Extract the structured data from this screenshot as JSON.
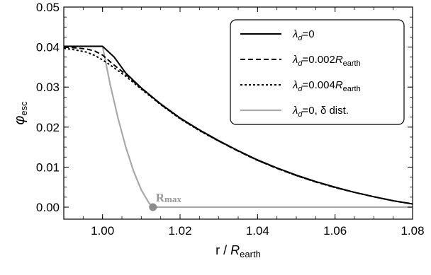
{
  "chart_data": {
    "type": "line",
    "title": "",
    "xlabel": {
      "main": "r / ",
      "italic": "R",
      "sub": "earth"
    },
    "ylabel": {
      "main": "φ",
      "sub": "esc"
    },
    "xlim": [
      0.99,
      1.08
    ],
    "ylim": [
      -0.003,
      0.05
    ],
    "xticks": [
      1.0,
      1.02,
      1.04,
      1.06,
      1.08
    ],
    "xtick_labels": [
      "1.00",
      "1.02",
      "1.04",
      "1.06",
      "1.08"
    ],
    "yticks": [
      0.0,
      0.01,
      0.02,
      0.03,
      0.04,
      0.05
    ],
    "ytick_labels": [
      "0.00",
      "0.01",
      "0.02",
      "0.03",
      "0.04",
      "0.05"
    ],
    "grid": false,
    "legend_position": "top-right",
    "series": [
      {
        "legend": {
          "prefix": "λ",
          "sub": "d",
          "rest": "=0",
          "tail": "",
          "tail_sub": ""
        },
        "color": "#000000",
        "dash": "",
        "x": [
          0.99,
          1.0,
          1.003,
          1.006,
          1.01,
          1.015,
          1.02,
          1.025,
          1.03,
          1.035,
          1.04,
          1.045,
          1.05,
          1.055,
          1.06,
          1.065,
          1.07,
          1.075,
          1.08
        ],
        "y": [
          0.0402,
          0.0402,
          0.0375,
          0.0335,
          0.0298,
          0.0258,
          0.0223,
          0.0193,
          0.0166,
          0.0141,
          0.0118,
          0.0098,
          0.008,
          0.0064,
          0.005,
          0.0037,
          0.0026,
          0.0016,
          0.0008
        ]
      },
      {
        "legend": {
          "prefix": "λ",
          "sub": "d",
          "rest": "=0.002",
          "tail": "R",
          "tail_sub": "earth"
        },
        "color": "#000000",
        "dash": "7,4",
        "x": [
          0.99,
          0.993,
          0.996,
          0.998,
          1.0,
          1.002,
          1.004,
          1.006,
          1.01,
          1.015,
          1.02,
          1.025,
          1.03,
          1.035,
          1.04,
          1.045,
          1.05,
          1.055,
          1.06,
          1.065,
          1.07,
          1.075,
          1.08
        ],
        "y": [
          0.04,
          0.0398,
          0.0395,
          0.039,
          0.038,
          0.0363,
          0.0347,
          0.0332,
          0.0297,
          0.0257,
          0.0222,
          0.0192,
          0.0165,
          0.014,
          0.0117,
          0.0097,
          0.0079,
          0.0063,
          0.0049,
          0.0037,
          0.0026,
          0.0016,
          0.0008
        ]
      },
      {
        "legend": {
          "prefix": "λ",
          "sub": "d",
          "rest": "=0.004",
          "tail": "R",
          "tail_sub": "earth"
        },
        "color": "#000000",
        "dash": "3,3",
        "x": [
          0.99,
          0.993,
          0.996,
          0.998,
          1.0,
          1.002,
          1.004,
          1.006,
          1.01,
          1.015,
          1.02,
          1.025,
          1.03,
          1.035,
          1.04,
          1.045,
          1.05,
          1.055,
          1.06,
          1.065,
          1.07,
          1.075,
          1.08
        ],
        "y": [
          0.0397,
          0.0393,
          0.0387,
          0.0379,
          0.0368,
          0.0355,
          0.0341,
          0.0327,
          0.0295,
          0.0256,
          0.0221,
          0.0191,
          0.0165,
          0.014,
          0.0117,
          0.0097,
          0.0079,
          0.0063,
          0.0049,
          0.0037,
          0.0026,
          0.0016,
          0.0008
        ]
      },
      {
        "legend": {
          "prefix": "λ",
          "sub": "d",
          "rest": "=0, δ dist.",
          "tail": "",
          "tail_sub": ""
        },
        "color": "#a9a9a9",
        "dash": "",
        "x": [
          0.99,
          1.0,
          1.002,
          1.004,
          1.006,
          1.008,
          1.01,
          1.012,
          1.013,
          1.02,
          1.04,
          1.06,
          1.08
        ],
        "y": [
          0.0402,
          0.0402,
          0.0305,
          0.0222,
          0.015,
          0.009,
          0.0043,
          0.001,
          0.0,
          0.0,
          0.0,
          0.0,
          0.0
        ]
      }
    ],
    "annotation": {
      "label": "R",
      "label_sub": "max",
      "x": 1.013,
      "y": 0.0,
      "color": "#8c8c8c"
    }
  }
}
